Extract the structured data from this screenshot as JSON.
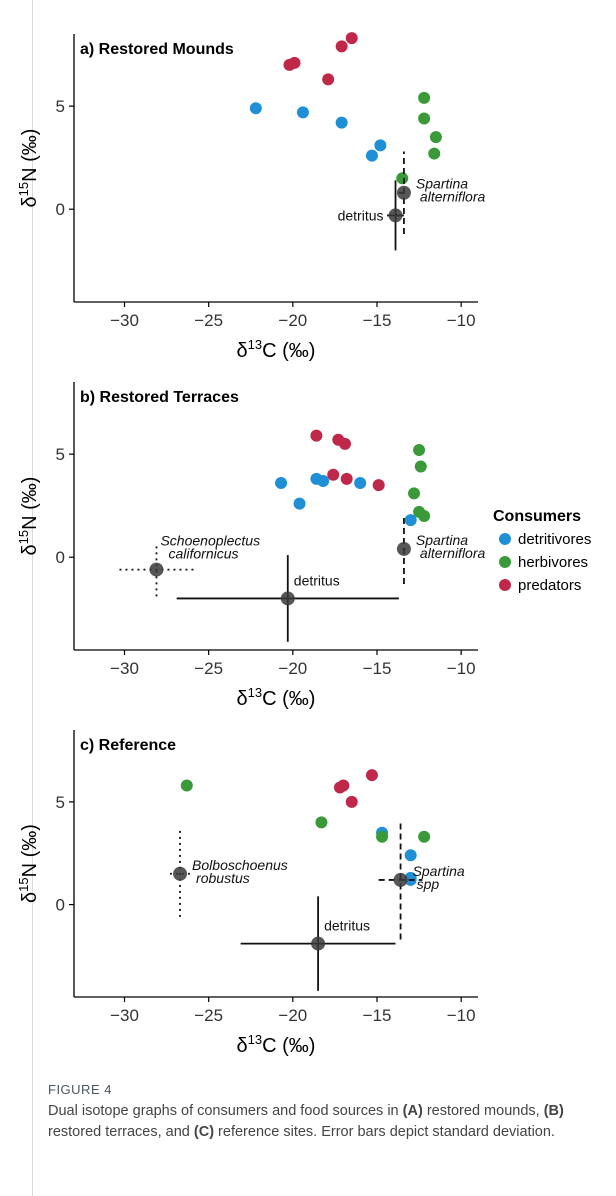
{
  "legend": {
    "title": "Consumers",
    "items": [
      {
        "label": "detritivores",
        "color": "#1f8fd6"
      },
      {
        "label": "herbivores",
        "color": "#3a9a3a"
      },
      {
        "label": "predators",
        "color": "#c0284a"
      }
    ]
  },
  "caption": {
    "label": "FIGURE 4",
    "text_parts": [
      {
        "t": "Dual isotope graphs of consumers and food sources in ",
        "b": false
      },
      {
        "t": "(A)",
        "b": true
      },
      {
        "t": " restored mounds, ",
        "b": false
      },
      {
        "t": "(B)",
        "b": true
      },
      {
        "t": " restored terraces, and ",
        "b": false
      },
      {
        "t": "(C)",
        "b": true
      },
      {
        "t": " reference sites. Error bars depict standard deviation.",
        "b": false
      }
    ]
  },
  "chart_data": [
    {
      "type": "scatter",
      "title": "a) Restored Mounds",
      "xlabel": "δ13C (‰)",
      "ylabel": "δ15N (‰)",
      "xlim": [
        -33,
        -9
      ],
      "ylim": [
        -4.5,
        8.5
      ],
      "xticks": [
        -30,
        -25,
        -20,
        -15,
        -10
      ],
      "yticks": [
        0,
        5
      ],
      "grid": false,
      "series": [
        {
          "name": "detritivores",
          "color": "#1f8fd6",
          "points": [
            [
              -22.2,
              4.9
            ],
            [
              -19.4,
              4.7
            ],
            [
              -17.1,
              4.2
            ],
            [
              -14.8,
              3.1
            ],
            [
              -15.3,
              2.6
            ]
          ]
        },
        {
          "name": "herbivores",
          "color": "#3a9a3a",
          "points": [
            [
              -12.2,
              5.4
            ],
            [
              -12.2,
              4.4
            ],
            [
              -11.5,
              3.5
            ],
            [
              -11.6,
              2.7
            ],
            [
              -13.5,
              1.5
            ]
          ]
        },
        {
          "name": "predators",
          "color": "#c0284a",
          "points": [
            [
              -16.5,
              8.3
            ],
            [
              -17.1,
              7.9
            ],
            [
              -19.9,
              7.1
            ],
            [
              -20.2,
              7.0
            ],
            [
              -17.9,
              6.3
            ]
          ]
        }
      ],
      "sources": [
        {
          "name": "detritus",
          "x": -13.9,
          "y": -0.3,
          "xsd": 0.5,
          "ysd": 1.7,
          "style": "solid",
          "label": [
            "detritus"
          ],
          "label_pos": "left"
        },
        {
          "name": "Spartina alterniflora",
          "x": -13.4,
          "y": 0.8,
          "xsd": 0.3,
          "ysd": 2.0,
          "style": "dashed",
          "label": [
            "Spartina",
            "alterniflora"
          ],
          "label_pos": "right"
        }
      ]
    },
    {
      "type": "scatter",
      "title": "b) Restored Terraces",
      "xlabel": "δ13C (‰)",
      "ylabel": "δ15N (‰)",
      "xlim": [
        -33,
        -9
      ],
      "ylim": [
        -4.5,
        8.5
      ],
      "xticks": [
        -30,
        -25,
        -20,
        -15,
        -10
      ],
      "yticks": [
        0,
        5
      ],
      "grid": false,
      "series": [
        {
          "name": "detritivores",
          "color": "#1f8fd6",
          "points": [
            [
              -20.7,
              3.6
            ],
            [
              -18.6,
              3.8
            ],
            [
              -18.2,
              3.7
            ],
            [
              -19.6,
              2.6
            ],
            [
              -16.0,
              3.6
            ],
            [
              -13.0,
              1.8
            ]
          ]
        },
        {
          "name": "herbivores",
          "color": "#3a9a3a",
          "points": [
            [
              -12.5,
              5.2
            ],
            [
              -12.4,
              4.4
            ],
            [
              -12.8,
              3.1
            ],
            [
              -12.5,
              2.2
            ],
            [
              -12.2,
              2.0
            ]
          ]
        },
        {
          "name": "predators",
          "color": "#c0284a",
          "points": [
            [
              -18.6,
              5.9
            ],
            [
              -17.3,
              5.7
            ],
            [
              -16.9,
              5.5
            ],
            [
              -17.6,
              4.0
            ],
            [
              -16.8,
              3.8
            ],
            [
              -14.9,
              3.5
            ]
          ]
        }
      ],
      "sources": [
        {
          "name": "Schoenoplectus californicus",
          "x": -28.1,
          "y": -0.6,
          "xsd": 2.2,
          "ysd": 1.3,
          "style": "dotted",
          "label": [
            "Schoenoplectus",
            "californicus"
          ],
          "label_pos": "above"
        },
        {
          "name": "detritus",
          "x": -20.3,
          "y": -2.0,
          "xsd": 6.6,
          "ysd": 2.1,
          "style": "solid",
          "label": [
            "detritus"
          ],
          "label_pos": "above-right"
        },
        {
          "name": "Spartina alterniflora",
          "x": -13.4,
          "y": 0.4,
          "xsd": 0.1,
          "ysd": 1.7,
          "style": "dashed",
          "label": [
            "Spartina",
            "alterniflora"
          ],
          "label_pos": "right"
        }
      ]
    },
    {
      "type": "scatter",
      "title": "c) Reference",
      "xlabel": "δ13C (‰)",
      "ylabel": "δ15N (‰)",
      "xlim": [
        -33,
        -9
      ],
      "ylim": [
        -4.5,
        8.5
      ],
      "xticks": [
        -30,
        -25,
        -20,
        -15,
        -10
      ],
      "yticks": [
        0,
        5
      ],
      "grid": false,
      "series": [
        {
          "name": "detritivores",
          "color": "#1f8fd6",
          "points": [
            [
              -14.7,
              3.5
            ],
            [
              -13.0,
              2.4
            ],
            [
              -13.0,
              1.3
            ],
            [
              -13.0,
              1.2
            ]
          ]
        },
        {
          "name": "herbivores",
          "color": "#3a9a3a",
          "points": [
            [
              -26.3,
              5.8
            ],
            [
              -18.3,
              4.0
            ],
            [
              -14.7,
              3.3
            ],
            [
              -12.2,
              3.3
            ]
          ]
        },
        {
          "name": "predators",
          "color": "#c0284a",
          "points": [
            [
              -17.2,
              5.7
            ],
            [
              -17.0,
              5.8
            ],
            [
              -15.3,
              6.3
            ],
            [
              -16.5,
              5.0
            ]
          ]
        }
      ],
      "sources": [
        {
          "name": "Bolboschoenus robustus",
          "x": -26.7,
          "y": 1.5,
          "xsd": 0.6,
          "ysd": 2.1,
          "style": "dotted",
          "label": [
            "Bolboschoenus",
            "robustus"
          ],
          "label_pos": "right"
        },
        {
          "name": "detritus",
          "x": -18.5,
          "y": -1.9,
          "xsd": 4.6,
          "ysd": 2.3,
          "style": "solid",
          "label": [
            "detritus"
          ],
          "label_pos": "above-right"
        },
        {
          "name": "Spartina spp",
          "x": -13.6,
          "y": 1.2,
          "xsd": 1.3,
          "ysd": 2.9,
          "style": "dashed",
          "label": [
            "Spartina",
            "spp"
          ],
          "label_pos": "right"
        }
      ]
    }
  ]
}
